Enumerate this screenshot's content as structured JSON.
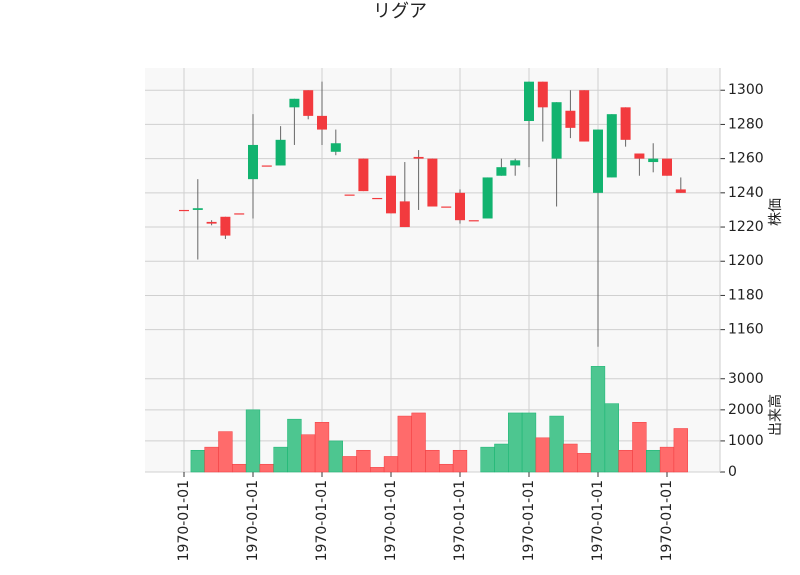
{
  "chart_data": {
    "type": "candlestick",
    "title": "リグア",
    "categories": [
      "1970-01-01",
      null,
      null,
      null,
      null,
      "1970-01-01",
      null,
      null,
      null,
      null,
      "1970-01-01",
      null,
      null,
      null,
      null,
      "1970-01-01",
      null,
      null,
      null,
      null,
      "1970-01-01",
      null,
      null,
      null,
      null,
      "1970-01-01",
      null,
      null,
      null,
      null,
      "1970-01-01",
      null,
      null,
      null,
      null,
      "1970-01-01",
      null
    ],
    "open": [
      1230,
      1230,
      1223,
      1226,
      1228,
      1248,
      1256,
      1256,
      1290,
      1300,
      1285,
      1264,
      1239,
      1260,
      1237,
      1250,
      1235,
      1261,
      1260,
      1232,
      1240,
      1224,
      1225,
      1250,
      1256,
      1282,
      1305,
      1260,
      1288,
      1300,
      1240,
      1249,
      1290,
      1263,
      1258,
      1260,
      1242
    ],
    "close": [
      1230,
      1231,
      1222,
      1215,
      1228,
      1268,
      1256,
      1271,
      1295,
      1285,
      1277,
      1269,
      1239,
      1241,
      1237,
      1228,
      1220,
      1260,
      1232,
      1232,
      1224,
      1224,
      1249,
      1255,
      1259,
      1305,
      1290,
      1293,
      1278,
      1270,
      1277,
      1286,
      1271,
      1260,
      1260,
      1250,
      1240
    ],
    "high": [
      1230,
      1248,
      1224,
      1226,
      1228,
      1286,
      1256,
      1279,
      1295,
      1300,
      1305,
      1277,
      1239,
      1260,
      1237,
      1250,
      1258,
      1265,
      1260,
      1232,
      1242,
      1224,
      1249,
      1260,
      1260,
      1305,
      1305,
      1293,
      1300,
      1300,
      1277,
      1286,
      1290,
      1263,
      1269,
      1260,
      1249
    ],
    "low": [
      1230,
      1201,
      1221,
      1213,
      1228,
      1225,
      1256,
      1256,
      1268,
      1283,
      1268,
      1262,
      1239,
      1241,
      1237,
      1228,
      1220,
      1230,
      1232,
      1232,
      1222,
      1224,
      1225,
      1250,
      1250,
      1255,
      1270,
      1232,
      1272,
      1270,
      1150,
      1249,
      1267,
      1250,
      1252,
      1250,
      1240
    ],
    "volume": [
      0,
      700,
      800,
      1300,
      250,
      2000,
      250,
      800,
      1700,
      1200,
      1600,
      1000,
      500,
      700,
      150,
      500,
      1800,
      1900,
      700,
      250,
      700,
      0,
      800,
      900,
      1900,
      1900,
      1100,
      1800,
      900,
      600,
      3400,
      2200,
      700,
      1600,
      700,
      800,
      1400
    ],
    "up_color": "#12b36f",
    "down_color": "#f23a3e",
    "volume_up_color": "#4dc690",
    "volume_down_color": "#ff6b6b",
    "ylabel": "株価",
    "ylim": [
      1144,
      1313
    ],
    "yticks": [
      1160,
      1180,
      1200,
      1220,
      1240,
      1260,
      1280,
      1300
    ],
    "volume_label": "出来高",
    "volume_ylim": [
      0,
      3700
    ],
    "volume_yticks": [
      0,
      1000,
      2000,
      3000
    ],
    "grid": true
  }
}
